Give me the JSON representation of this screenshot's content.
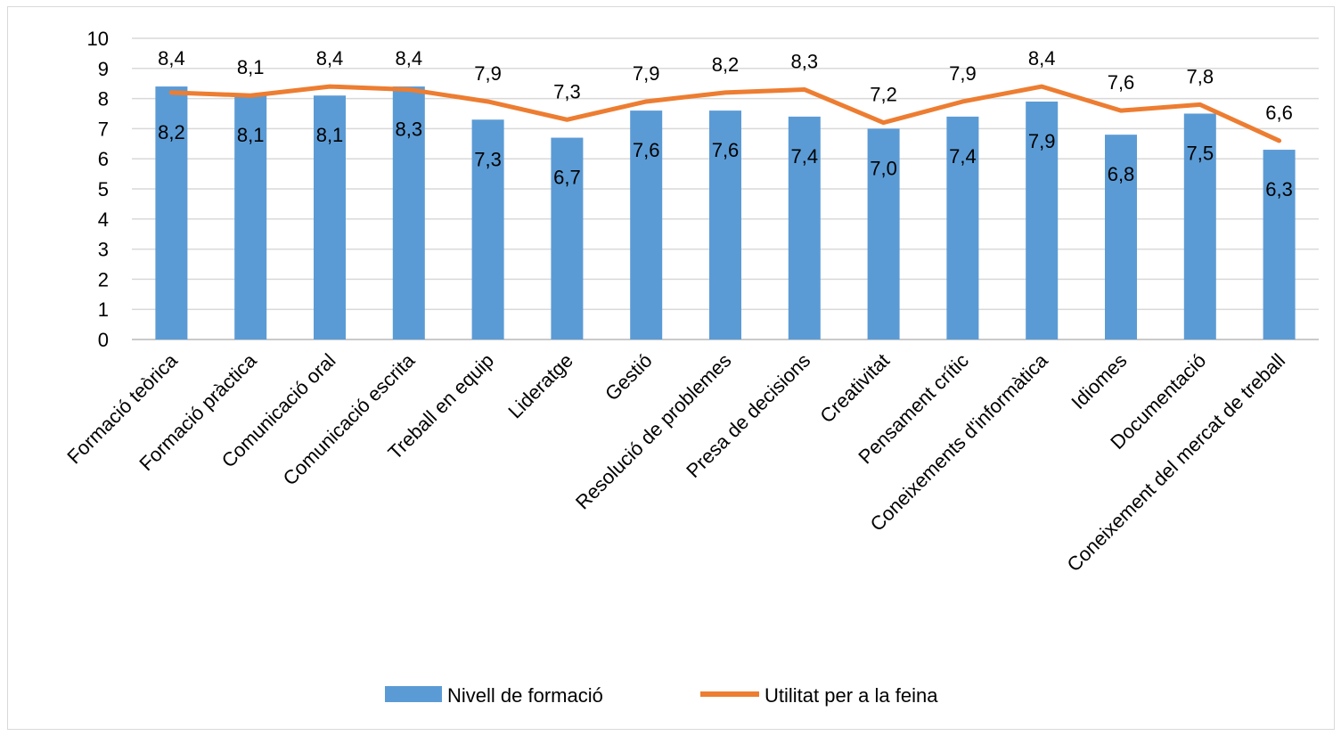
{
  "chart_data": {
    "type": "bar",
    "categories": [
      "Formació teòrica",
      "Formació pràctica",
      "Comunicació oral",
      "Comunicació escrita",
      "Treball en equip",
      "Lideratge",
      "Gestió",
      "Resolució de problemes",
      "Presa de decisions",
      "Creativitat",
      "Pensament crític",
      "Coneixements d'informàtica",
      "Idiomes",
      "Documentació",
      "Coneixement del mercat de treball"
    ],
    "series": [
      {
        "name": "Nivell de formació",
        "type": "bar",
        "color": "#5b9bd5",
        "values": [
          8.4,
          8.1,
          8.1,
          8.4,
          7.3,
          6.7,
          7.6,
          7.6,
          7.4,
          7.0,
          7.4,
          7.9,
          6.8,
          7.5,
          6.3
        ],
        "labels": [
          "8,4",
          "8,1",
          "8,1",
          "8,4",
          "7,3",
          "6,7",
          "7,6",
          "7,6",
          "7,4",
          "7,0",
          "7,4",
          "7,9",
          "6,8",
          "7,5",
          "6,3"
        ]
      },
      {
        "name": "Utilitat per a la feina",
        "type": "line",
        "color": "#ed7d31",
        "values": [
          8.2,
          8.1,
          8.4,
          8.3,
          7.9,
          7.3,
          7.9,
          8.2,
          8.3,
          7.2,
          7.9,
          8.4,
          7.6,
          7.8,
          6.6
        ],
        "labels": [
          "8,2",
          "8,1",
          "8,4",
          "8,3",
          "7,9",
          "7,3",
          "7,9",
          "8,2",
          "8,3",
          "7,2",
          "7,9",
          "8,4",
          "7,6",
          "7,8",
          "6,6"
        ]
      }
    ],
    "ylim": [
      0,
      10
    ],
    "yticks": [
      "0",
      "1",
      "2",
      "3",
      "4",
      "5",
      "6",
      "7",
      "8",
      "9",
      "10"
    ],
    "grid": true,
    "legend": "bottom"
  }
}
